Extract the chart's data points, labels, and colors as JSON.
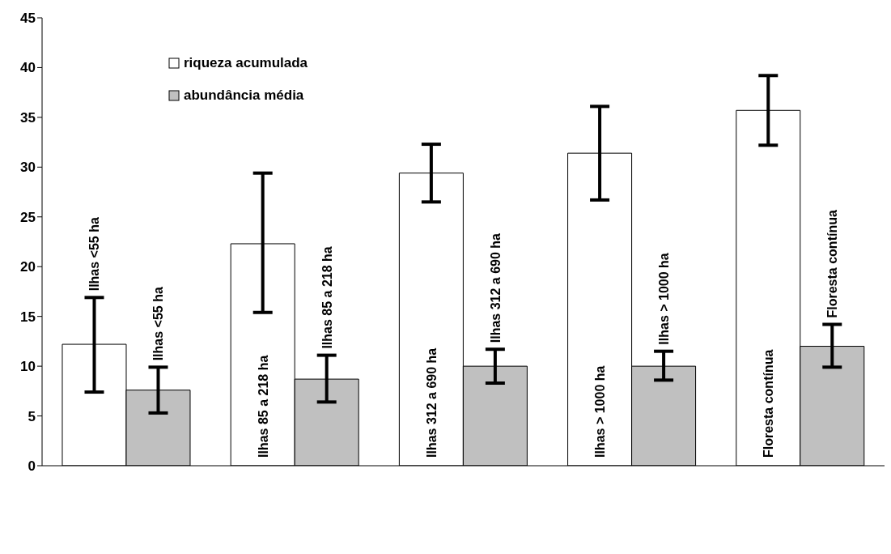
{
  "chart_data": {
    "type": "bar",
    "categories": [
      "Ilhas <55 ha",
      "Ilhas 85 a 218 ha",
      "Ilhas 312 a 690 ha",
      "Ilhas > 1000 ha",
      "Floresta contínua"
    ],
    "series": [
      {
        "name": "riqueza acumulada",
        "color": "#ffffff",
        "values": [
          12.2,
          22.3,
          29.4,
          31.4,
          35.7
        ],
        "errors": [
          [
            7.4,
            16.9
          ],
          [
            15.4,
            29.4
          ],
          [
            26.5,
            32.3
          ],
          [
            26.7,
            36.1
          ],
          [
            32.2,
            39.2
          ]
        ]
      },
      {
        "name": "abundância média",
        "color": "#c0c0c0",
        "values": [
          7.6,
          8.7,
          10.0,
          10.0,
          12.0
        ],
        "errors": [
          [
            5.3,
            9.9
          ],
          [
            6.4,
            11.1
          ],
          [
            8.3,
            11.7
          ],
          [
            8.6,
            11.5
          ],
          [
            9.9,
            14.2
          ]
        ]
      }
    ],
    "ylim": [
      0,
      45
    ],
    "yticks": [
      0,
      5,
      10,
      15,
      20,
      25,
      30,
      35,
      40,
      45
    ],
    "grid": false,
    "legend": "top left",
    "tick_labels": "y"
  }
}
